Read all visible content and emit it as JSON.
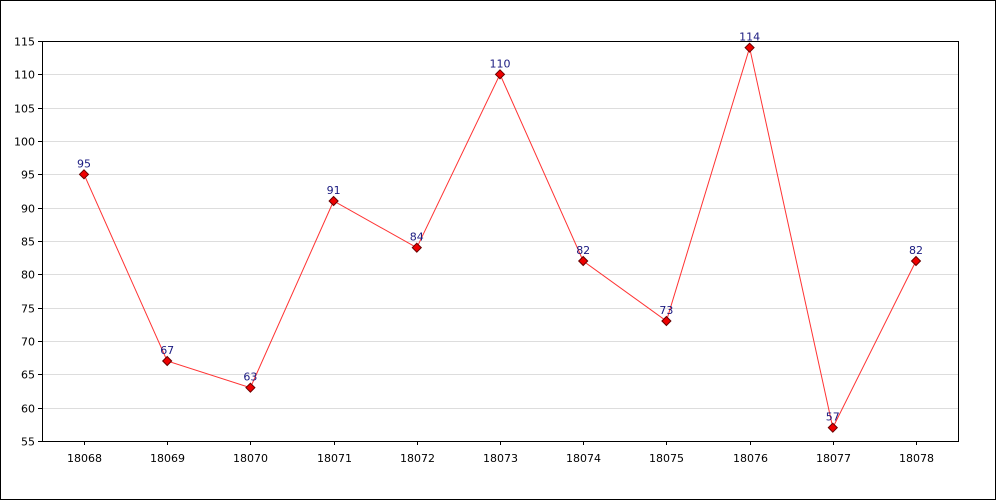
{
  "chart_data": {
    "type": "line",
    "title": "",
    "xlabel": "",
    "ylabel": "",
    "x": [
      "18068",
      "18069",
      "18070",
      "18071",
      "18072",
      "18073",
      "18074",
      "18075",
      "18076",
      "18077",
      "18078"
    ],
    "series": [
      {
        "values": [
          95,
          67,
          63,
          91,
          84,
          110,
          82,
          73,
          114,
          57,
          82
        ]
      }
    ],
    "ylim": [
      55,
      115
    ],
    "yticks": [
      55,
      60,
      65,
      70,
      75,
      80,
      85,
      90,
      95,
      100,
      105,
      110,
      115
    ],
    "grid": true,
    "legend": "none",
    "data_labels": true,
    "colors": {
      "line": "#ff3333",
      "marker": "#ee0000",
      "marker_edge": "#660000",
      "label": "#1a1a80",
      "grid": "#dddddd"
    }
  }
}
